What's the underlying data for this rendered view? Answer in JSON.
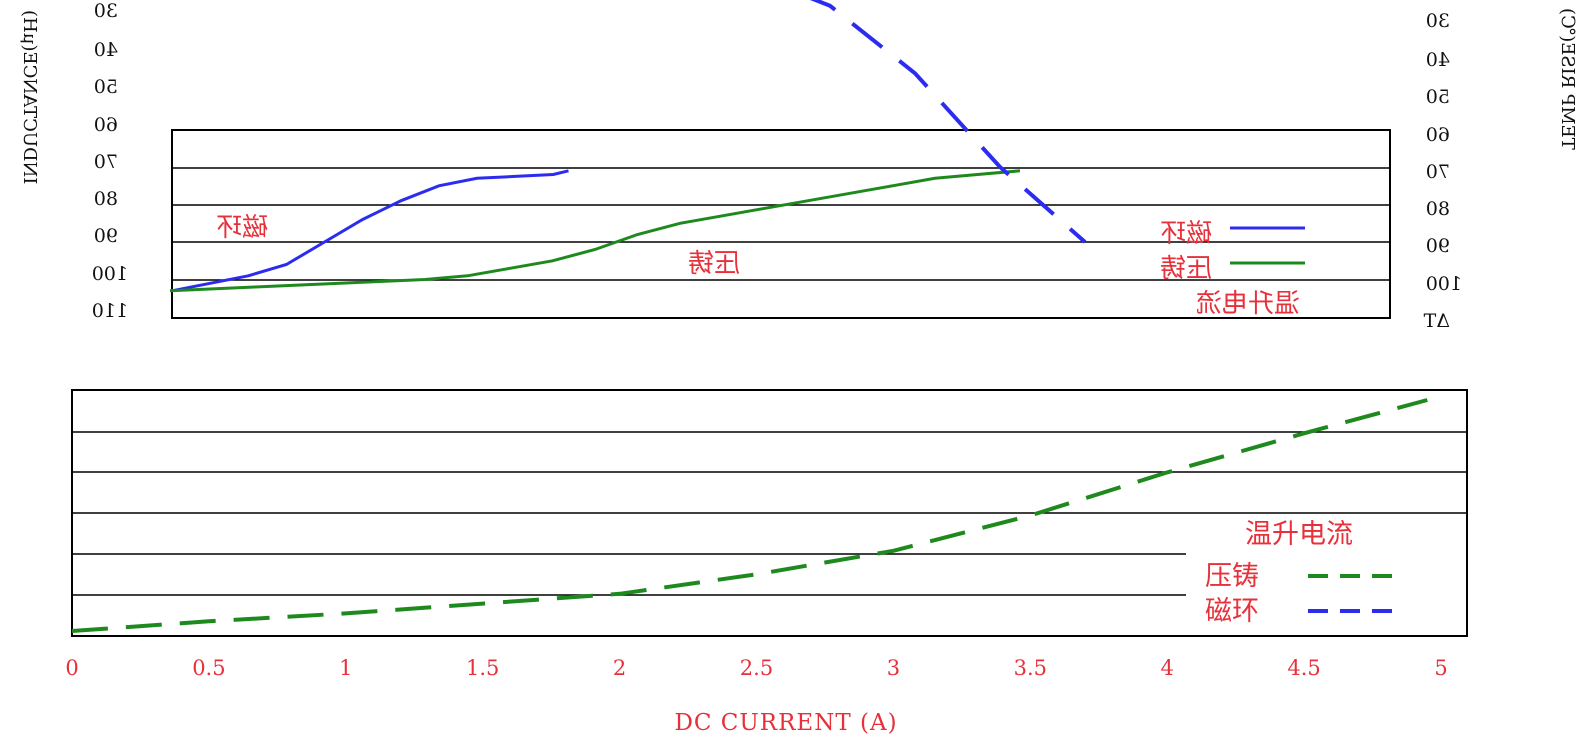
{
  "chart_data": [
    {
      "type": "line",
      "mirrored": true,
      "title": "",
      "ylabel_left": "INDUCTANCE(μH)",
      "ylabel_right": "TEMP RISE(℃)",
      "left_ticks": [
        "30",
        "40",
        "50",
        "60",
        "70",
        "80",
        "90",
        "100",
        "110"
      ],
      "right_ticks": [
        "30",
        "40",
        "50",
        "60",
        "70",
        "80",
        "90",
        "100",
        "ΔT"
      ],
      "grid": true,
      "legend_position": "right",
      "legend_title": "温升电流",
      "labels": {
        "blue": "磁环",
        "green": "压铸"
      },
      "series": [
        {
          "key": "blue",
          "color": "#2c2cf0",
          "x": [
            0,
            0.25,
            0.5,
            0.75,
            1.0,
            1.25,
            1.5,
            1.75,
            2.0,
            2.25,
            2.5,
            2.6
          ],
          "y": [
            103,
            101,
            99,
            96,
            90,
            84,
            79,
            75,
            73,
            72.5,
            72,
            71
          ]
        },
        {
          "key": "green",
          "color": "#1e8a1e",
          "x": [
            0,
            0.25,
            0.5,
            0.75,
            1.0,
            1.25,
            1.5,
            1.75,
            2.0,
            2.25,
            2.5,
            2.75,
            3.0,
            3.25,
            3.5,
            3.75,
            4.0,
            4.25,
            4.5,
            4.75,
            5.0
          ],
          "y": [
            103,
            102.5,
            102,
            101.5,
            101,
            100.5,
            100,
            99,
            97,
            95,
            92,
            88,
            85,
            83,
            81,
            79,
            77,
            75,
            73,
            72,
            71
          ]
        },
        {
          "key": "blue-dashed",
          "color": "#2c2cf0",
          "dashed": true,
          "x": [
            0.0,
            0.5,
            1.0,
            1.5,
            2.0
          ],
          "y": [
            18,
            27,
            45,
            70,
            90
          ]
        }
      ]
    },
    {
      "type": "line",
      "title": "",
      "xlabel": "DC    CURRENT (A)",
      "x_ticks": [
        "0",
        "0.5",
        "1",
        "1.5",
        "2",
        "2.5",
        "3",
        "3.5",
        "4",
        "4.5",
        "5"
      ],
      "xlim": [
        0,
        5
      ],
      "ylim": [
        0,
        6
      ],
      "grid": true,
      "legend_position": "bottom-right",
      "legend_title": "温升电流",
      "series": [
        {
          "name": "压铸",
          "color": "#1e8a1e",
          "dashed": true,
          "x": [
            0,
            0.5,
            1.0,
            1.5,
            2.0,
            2.5,
            3.0,
            3.5,
            4.0,
            4.5,
            4.95
          ],
          "y": [
            0.05,
            0.3,
            0.5,
            0.75,
            1.0,
            1.5,
            2.1,
            3.0,
            4.1,
            5.1,
            5.95
          ]
        },
        {
          "name": "磁环",
          "color": "#2c2cf0",
          "dashed": true,
          "x": [],
          "y": []
        }
      ]
    }
  ]
}
